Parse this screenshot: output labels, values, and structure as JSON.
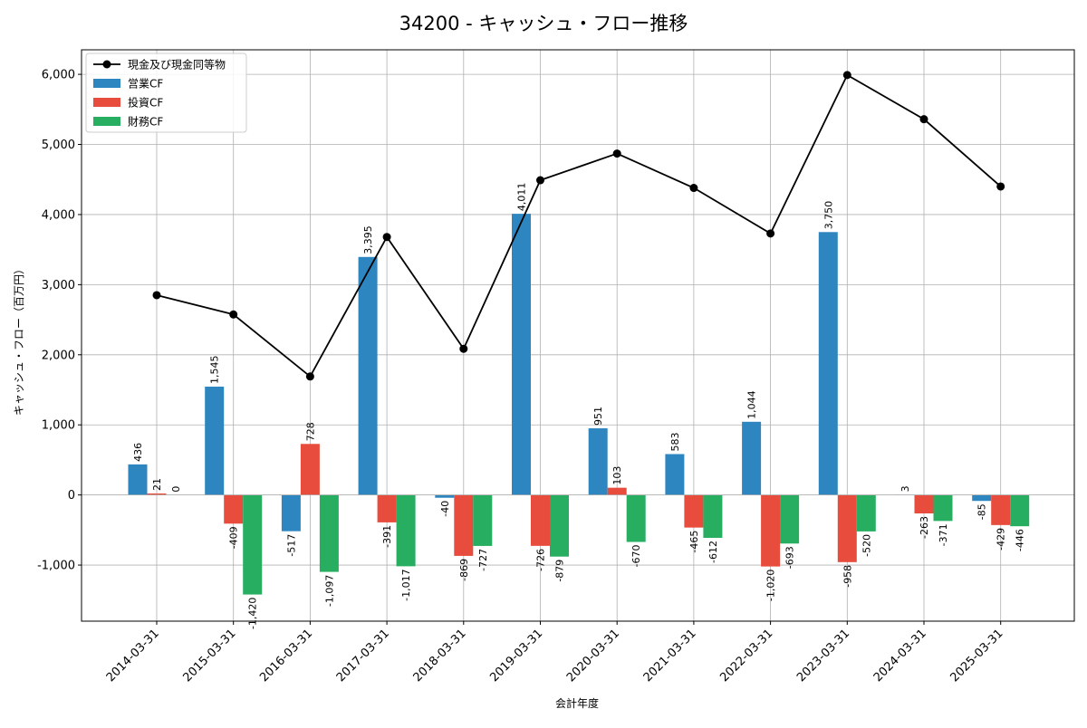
{
  "chart_data": {
    "type": "bar",
    "title": "34200 - キャッシュ・フロー推移",
    "xlabel": "会計年度",
    "ylabel": "キャッシュ・フロー（百万円）",
    "ylim": [
      -1800,
      6350
    ],
    "yticks": [
      -1000,
      0,
      1000,
      2000,
      3000,
      4000,
      5000,
      6000
    ],
    "ytick_labels": [
      "-1,000",
      "0",
      "1,000",
      "2,000",
      "3,000",
      "4,000",
      "5,000",
      "6,000"
    ],
    "grid": true,
    "legend_position": "top-left",
    "categories": [
      "2014-03-31",
      "2015-03-31",
      "2016-03-31",
      "2017-03-31",
      "2018-03-31",
      "2019-03-31",
      "2020-03-31",
      "2021-03-31",
      "2022-03-31",
      "2023-03-31",
      "2024-03-31",
      "2025-03-31"
    ],
    "series": [
      {
        "name": "営業CF",
        "kind": "bar",
        "color": "#2e86c1",
        "values": [
          436,
          1545,
          -517,
          3395,
          -40,
          4011,
          951,
          583,
          1044,
          3750,
          3,
          -85
        ],
        "labels": [
          "436",
          "1,545",
          "-517",
          "3,395",
          "-40",
          "4,011",
          "951",
          "583",
          "1,044",
          "3,750",
          "3",
          "-85"
        ]
      },
      {
        "name": "投資CF",
        "kind": "bar",
        "color": "#e74c3c",
        "values": [
          21,
          -409,
          728,
          -391,
          -869,
          -726,
          103,
          -465,
          -1020,
          -958,
          -263,
          -429
        ],
        "labels": [
          "21",
          "-409",
          "728",
          "-391",
          "-869",
          "-726",
          "103",
          "-465",
          "-1,020",
          "-958",
          "-263",
          "-429"
        ]
      },
      {
        "name": "財務CF",
        "kind": "bar",
        "color": "#27ae60",
        "values": [
          0,
          -1420,
          -1097,
          -1017,
          -727,
          -879,
          -670,
          -612,
          -693,
          -520,
          -371,
          -446
        ],
        "labels": [
          "0",
          "-1,420",
          "-1,097",
          "-1,017",
          "-727",
          "-879",
          "-670",
          "-612",
          "-693",
          "-520",
          "-371",
          "-446"
        ]
      },
      {
        "name": "現金及び現金同等物",
        "kind": "line",
        "color": "#000000",
        "values": [
          2850,
          2575,
          1690,
          3680,
          2085,
          4490,
          4870,
          4380,
          3730,
          5990,
          5360,
          4400
        ]
      }
    ]
  }
}
